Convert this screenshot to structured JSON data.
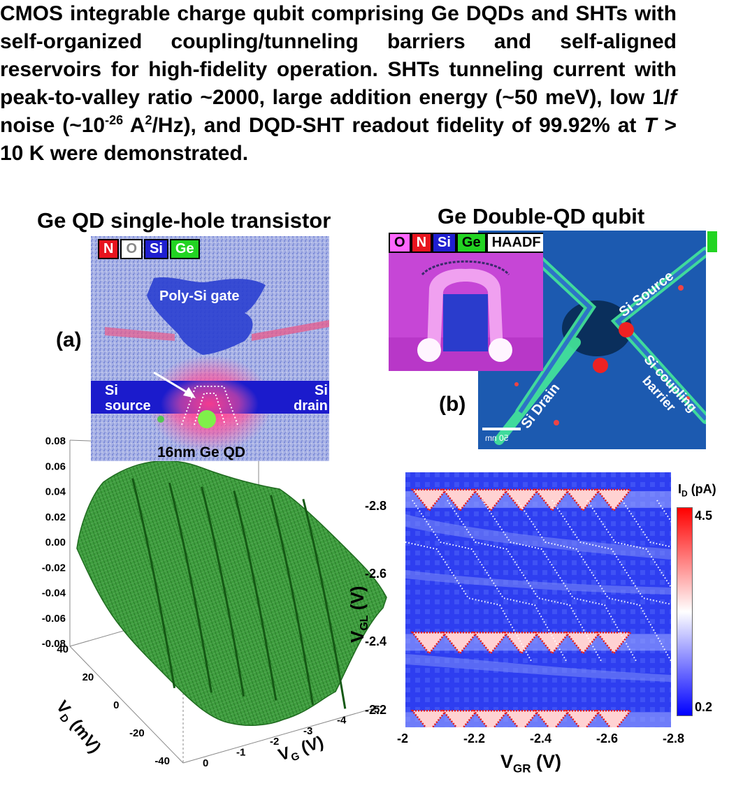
{
  "abstract": {
    "part1": "CMOS integrable charge qubit comprising Ge DQDs and SHTs with self-organized coupling/tunneling barriers and self-aligned reservoirs for high-fidelity operation. SHTs tunneling current with peak-to-valley ratio ~2000, large addition energy (~50 meV), low 1/",
    "italic_f": "f",
    "part2": " noise (~10",
    "exp": "-26",
    "part3": " A",
    "exp2": "2",
    "part4": "/Hz), and DQD-SHT readout fidelity of 99.92% at ",
    "italic_T": "T",
    "part5": " > 10 K were demonstrated."
  },
  "panel_a": {
    "title": "Ge QD single-hole transistor",
    "label": "(a)",
    "legend": [
      "N",
      "O",
      "Si",
      "Ge"
    ],
    "gate_label": "Poly-Si gate",
    "source_label": [
      "Si",
      "source"
    ],
    "drain_label": [
      "Si",
      "drain"
    ],
    "qd_label": "16nm Ge QD"
  },
  "panel_b": {
    "title": "Ge Double-QD qubit",
    "label": "(b)",
    "legend": [
      "O",
      "N",
      "Si",
      "Ge",
      "HAADF"
    ],
    "source_label": "Si Source",
    "drain_label": "Si Drain",
    "barrier_label": [
      "Si coupling",
      "barrier"
    ],
    "scale_bar": "50 nm"
  },
  "colors": {
    "N": "#e8141e",
    "O": "#ffffff",
    "Si": "#1f1fd0",
    "Ge": "#22d422",
    "O_inset": "#ff66ff",
    "surface": "#2e8b2e",
    "colormap_high": "#ff0000",
    "colormap_low": "#0000ff"
  },
  "chart_data": [
    {
      "type": "surface3d",
      "title": "",
      "zticks": [
        "0.08",
        "0.06",
        "0.04",
        "0.02",
        "0.00",
        "-0.02",
        "-0.04",
        "-0.06",
        "-0.08"
      ],
      "zlim": [
        -0.08,
        0.08
      ],
      "xlabel": "V_G (V)",
      "xticks": [
        "0",
        "-1",
        "-2",
        "-3",
        "-4",
        "-5"
      ],
      "ylabel": "V_D (mV)",
      "yticks": [
        "40",
        "20",
        "0",
        "-20",
        "-40"
      ],
      "peak_positions_VG": [
        -0.6,
        -1.4,
        -2.1,
        -2.8,
        -3.6,
        -4.3
      ]
    },
    {
      "type": "heatmap",
      "title": "",
      "xlabel": "V_GR (V)",
      "xticks": [
        "-2",
        "-2.2",
        "-2.4",
        "-2.6",
        "-2.8"
      ],
      "xlim": [
        -2.0,
        -2.8
      ],
      "ylabel": "V_GL (V)",
      "yticks": [
        "-2.8",
        "-2.6",
        "-2.4",
        "-2.2"
      ],
      "ylim": [
        -2.15,
        -2.9
      ],
      "colorbar_label": "I_D (pA)",
      "colorbar_ticks": [
        "4.5",
        "0.2"
      ],
      "colorbar_range": [
        0.2,
        4.5
      ],
      "high_current_rows_VGL": [
        -2.82,
        -2.4,
        -2.17
      ]
    }
  ]
}
